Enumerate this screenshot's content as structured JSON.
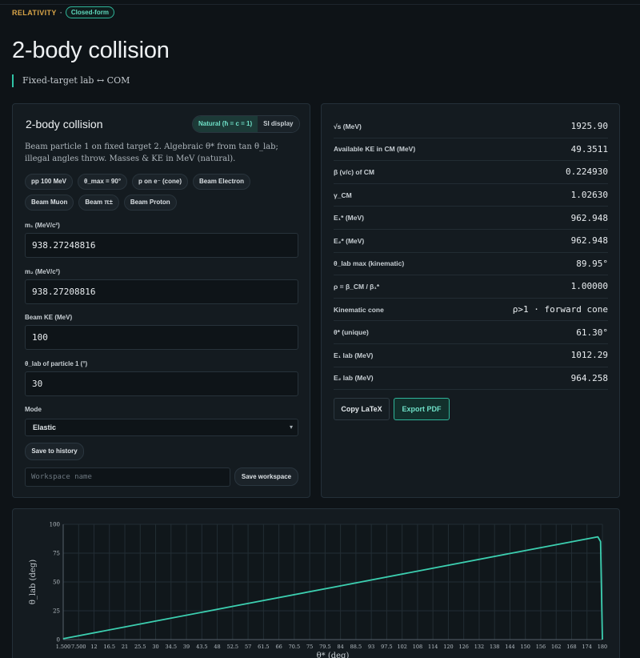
{
  "breadcrumb": {
    "section": "RELATIVITY",
    "separator": "·",
    "badge": "Closed-form"
  },
  "page": {
    "title": "2-body collision",
    "subtitle": "Fixed-target lab ↔ COM"
  },
  "calculator": {
    "title": "2-body collision",
    "units_toggle": {
      "natural": "Natural (ħ = c = 1)",
      "si": "SI display",
      "selected": "natural"
    },
    "description": "Beam particle 1 on fixed target 2. Algebraic θ* from tan θ_lab; illegal angles throw. Masses & KE in MeV (natural).",
    "presets": [
      "pp 100 MeV",
      "θ_max = 90°",
      "p on e⁻ (cone)",
      "Beam Electron",
      "Beam Muon",
      "Beam π±",
      "Beam Proton"
    ],
    "fields": {
      "m1": {
        "label": "m₁ (MeV/c²)",
        "value": "938.27248816"
      },
      "m2": {
        "label": "m₂ (MeV/c²)",
        "value": "938.27208816"
      },
      "ke": {
        "label": "Beam KE (MeV)",
        "value": "100"
      },
      "theta": {
        "label": "θ_lab of particle 1 (°)",
        "value": "30"
      },
      "mode": {
        "label": "Mode",
        "value": "Elastic"
      }
    },
    "save_history": "Save to history",
    "workspace_placeholder": "Workspace name",
    "save_workspace": "Save workspace"
  },
  "results": {
    "rows": [
      {
        "k": "√s (MeV)",
        "v": "1925.90"
      },
      {
        "k": "Available KE in CM (MeV)",
        "v": "49.3511"
      },
      {
        "k": "β (v/c) of CM",
        "v": "0.224930"
      },
      {
        "k": "γ_CM",
        "v": "1.02630"
      },
      {
        "k": "E₁* (MeV)",
        "v": "962.948"
      },
      {
        "k": "E₂* (MeV)",
        "v": "962.948"
      },
      {
        "k": "θ_lab max (kinematic)",
        "v": "89.95°"
      },
      {
        "k": "ρ = β_CM / β₁*",
        "v": "1.00000"
      },
      {
        "k": "Kinematic cone",
        "v": "ρ>1 · forward cone"
      },
      {
        "k": "θ* (unique)",
        "v": "61.30°"
      },
      {
        "k": "E₁ lab (MeV)",
        "v": "1012.29"
      },
      {
        "k": "E₂ lab (MeV)",
        "v": "964.258"
      }
    ],
    "copy_latex": "Copy LaTeX",
    "export_pdf": "Export PDF"
  },
  "chart_data": {
    "type": "line",
    "xlabel": "θ* (deg)",
    "ylabel": "θ_lab (deg)",
    "xlim": [
      1.5,
      180
    ],
    "ylim": [
      0,
      100
    ],
    "x_ticks": [
      "1.500",
      "7.500",
      "12",
      "16.5",
      "21",
      "25.5",
      "30",
      "34.5",
      "39",
      "43.5",
      "48",
      "52.5",
      "57",
      "61.5",
      "66",
      "70.5",
      "75",
      "79.5",
      "84",
      "88.5",
      "93",
      "97.5",
      "102",
      "108",
      "114",
      "120",
      "126",
      "132",
      "138",
      "144",
      "150",
      "156",
      "162",
      "168",
      "174",
      "180"
    ],
    "y_ticks": [
      0,
      25,
      50,
      75,
      100
    ],
    "grid": true,
    "line_color": "#3ccfb0",
    "series": [
      {
        "x": [
          1.5,
          30,
          60,
          90,
          120,
          150,
          178.5,
          179.4,
          180
        ],
        "y": [
          0.75,
          15,
          30,
          45,
          60,
          75,
          89.2,
          85,
          0
        ]
      }
    ]
  }
}
